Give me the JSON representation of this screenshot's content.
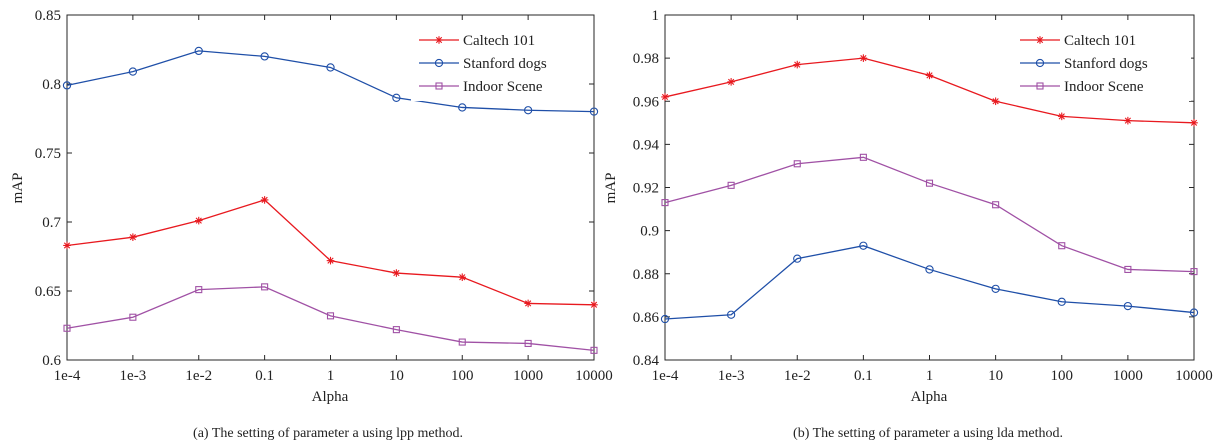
{
  "chart_data": [
    {
      "type": "line",
      "categories": [
        "1e-4",
        "1e-3",
        "1e-2",
        "0.1",
        "1",
        "10",
        "100",
        "1000",
        "10000"
      ],
      "xlabel": "Alpha",
      "ylabel": "mAP",
      "ylim": [
        0.6,
        0.85
      ],
      "yticks": [
        "0.6",
        "0.65",
        "0.7",
        "0.75",
        "0.8",
        "0.85"
      ],
      "legend_position": "top-right",
      "caption": "(a) The setting of parameter a using lpp method.",
      "series": [
        {
          "name": "Caltech 101",
          "color": "#e8191f",
          "marker": "star",
          "values": [
            0.683,
            0.689,
            0.701,
            0.716,
            0.672,
            0.663,
            0.66,
            0.641,
            0.64
          ]
        },
        {
          "name": "Stanford dogs",
          "color": "#1f4fa8",
          "marker": "circle",
          "values": [
            0.799,
            0.809,
            0.824,
            0.82,
            0.812,
            0.79,
            0.783,
            0.781,
            0.78
          ]
        },
        {
          "name": "Indoor Scene",
          "color": "#a051a5",
          "marker": "square",
          "values": [
            0.623,
            0.631,
            0.651,
            0.653,
            0.632,
            0.622,
            0.613,
            0.612,
            0.607
          ]
        }
      ]
    },
    {
      "type": "line",
      "categories": [
        "1e-4",
        "1e-3",
        "1e-2",
        "0.1",
        "1",
        "10",
        "100",
        "1000",
        "10000"
      ],
      "xlabel": "Alpha",
      "ylabel": "mAP",
      "ylim": [
        0.84,
        1.0
      ],
      "yticks": [
        "0.84",
        "0.86",
        "0.88",
        "0.9",
        "0.92",
        "0.94",
        "0.96",
        "0.98",
        "1"
      ],
      "legend_position": "top-right",
      "caption": "(b) The setting of parameter  a  using  lda  method.",
      "series": [
        {
          "name": "Caltech 101",
          "color": "#e8191f",
          "marker": "star",
          "values": [
            0.962,
            0.969,
            0.977,
            0.98,
            0.972,
            0.96,
            0.953,
            0.951,
            0.95
          ]
        },
        {
          "name": "Stanford dogs",
          "color": "#1f4fa8",
          "marker": "circle",
          "values": [
            0.859,
            0.861,
            0.887,
            0.893,
            0.882,
            0.873,
            0.867,
            0.865,
            0.862
          ]
        },
        {
          "name": "Indoor Scene",
          "color": "#a051a5",
          "marker": "square",
          "values": [
            0.913,
            0.921,
            0.931,
            0.934,
            0.922,
            0.912,
            0.893,
            0.882,
            0.881
          ]
        }
      ]
    }
  ]
}
